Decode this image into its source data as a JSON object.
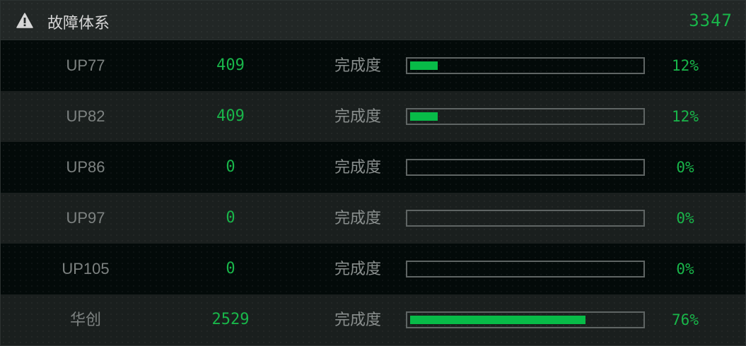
{
  "header": {
    "title": "故障体系",
    "total": "3347",
    "icon": "warning-icon"
  },
  "colors": {
    "accent": "#08bb48",
    "text_muted": "#7d8281"
  },
  "rows": [
    {
      "name": "UP77",
      "value": "409",
      "label": "完成度",
      "progress": 12,
      "percent": "12%"
    },
    {
      "name": "UP82",
      "value": "409",
      "label": "完成度",
      "progress": 12,
      "percent": "12%"
    },
    {
      "name": "UP86",
      "value": "0",
      "label": "完成度",
      "progress": 0,
      "percent": "0%"
    },
    {
      "name": "UP97",
      "value": "0",
      "label": "完成度",
      "progress": 0,
      "percent": "0%"
    },
    {
      "name": "UP105",
      "value": "0",
      "label": "完成度",
      "progress": 0,
      "percent": "0%"
    },
    {
      "name": "华创",
      "value": "2529",
      "label": "完成度",
      "progress": 76,
      "percent": "76%"
    }
  ]
}
